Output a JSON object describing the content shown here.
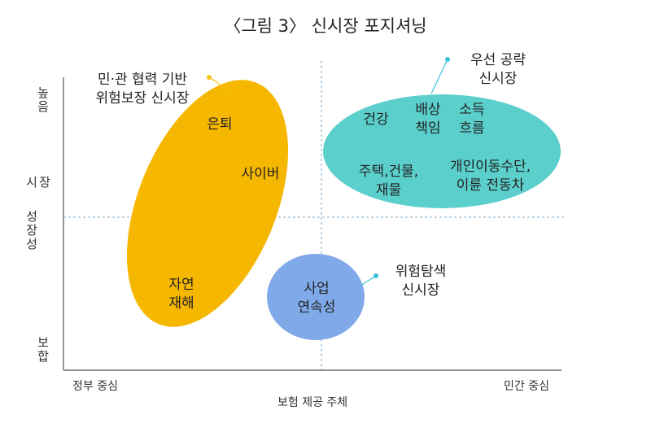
{
  "title": "〈그림 3〉 신시장 포지셔닝",
  "axes": {
    "y_label": "시장 성장성",
    "y_label_line1": "시",
    "y_label_line2": "장",
    "y_label_line3": "성장성",
    "y_high": "높음",
    "y_low": "보합",
    "x_label": "보험 제공 주체",
    "x_left": "정부 중심",
    "x_right": "민간 중심"
  },
  "colors": {
    "orange": "#F5B700",
    "teal": "#5BCFCB",
    "blue": "#7FA9E8",
    "callout": "#F5C518",
    "callout_teal": "#3BC0D6",
    "axis": "#555555",
    "dash": "#7EA9C9"
  },
  "groups": {
    "orange": {
      "callout_line1": "민·관 협력 기반",
      "callout_line2": "위험보장 신시장",
      "items": [
        "은퇴",
        "사이버",
        "자연",
        "재해"
      ]
    },
    "teal": {
      "callout_line1": "우선 공략",
      "callout_line2": "신시장",
      "items": {
        "a": "건강",
        "b1": "배상",
        "b2": "책임",
        "c1": "소득",
        "c2": "흐름",
        "d1": "주택,건물,",
        "d2": "재물",
        "e1": "개인이동수단,",
        "e2": "이륜 전동차"
      }
    },
    "blue": {
      "callout_line1": "위험탐색",
      "callout_line2": "신시장",
      "item1": "사업",
      "item2": "연속성"
    }
  }
}
